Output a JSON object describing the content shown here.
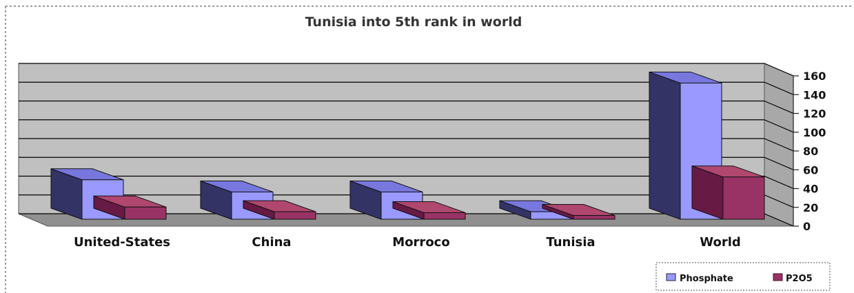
{
  "chart_data": {
    "type": "bar",
    "title": "Tunisia into 5th rank in world",
    "categories": [
      "United-States",
      "China",
      "Morroco",
      "Tunisia",
      "World"
    ],
    "series": [
      {
        "name": "Phosphate",
        "values": [
          42,
          29,
          29,
          8,
          145
        ],
        "color": "#9999ff",
        "side_color": "#333366",
        "top_color": "#7777dd"
      },
      {
        "name": "P2O5",
        "values": [
          13,
          8,
          7,
          4,
          45
        ],
        "color": "#993366",
        "side_color": "#661a44",
        "top_color": "#b0476f"
      }
    ],
    "yticks": [
      "0",
      "20",
      "40",
      "60",
      "80",
      "100",
      "120",
      "140",
      "160"
    ],
    "ylim": [
      0,
      160
    ],
    "xlabel": "",
    "ylabel": "",
    "grid": true,
    "legend": "bottom-right",
    "style": "3d",
    "colors": {
      "wall": "#c0c0c0",
      "floor": "#909090",
      "side_wall": "#a8a8a8",
      "gridline": "#000000"
    }
  }
}
